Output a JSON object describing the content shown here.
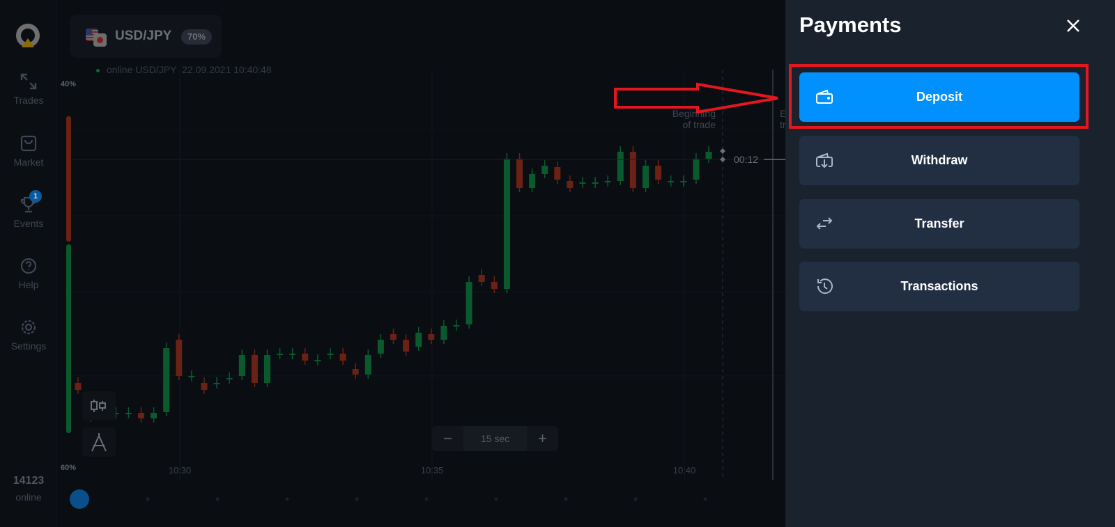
{
  "sidebar": {
    "items": [
      {
        "label": "Trades",
        "icon": "trades-arrows-icon"
      },
      {
        "label": "Market",
        "icon": "shopping-bag-icon"
      },
      {
        "label": "Events",
        "icon": "trophy-icon",
        "badge": "1"
      },
      {
        "label": "Help",
        "icon": "help-icon"
      },
      {
        "label": "Settings",
        "icon": "gear-icon"
      }
    ],
    "online_count": "14123",
    "online_label": "online"
  },
  "asset": {
    "name": "USD/JPY",
    "payout": "70%",
    "status": "online USD/JPY",
    "datetime": "22.09.2021 10:40:48"
  },
  "chart_data": {
    "type": "candlestick",
    "x_ticks": [
      "10:30",
      "10:35",
      "10:40"
    ],
    "candle_interval": "15 sec",
    "sentiment_top": "40%",
    "sentiment_bottom": "60%",
    "sentiment_sell_fraction": 0.4,
    "markers": {
      "beginning": "Beginning\nof trade",
      "expiration_partial": "E\ntr",
      "timer": "00:12"
    },
    "candles": [
      [
        150,
        140
      ],
      [
        120,
        100
      ],
      [
        107,
        107
      ],
      [
        107,
        107
      ],
      [
        107,
        107
      ],
      [
        107,
        99
      ],
      [
        99,
        107
      ],
      [
        108,
        200
      ],
      [
        212,
        160
      ],
      [
        160,
        160
      ],
      [
        150,
        140
      ],
      [
        150,
        150
      ],
      [
        157,
        157
      ],
      [
        160,
        190
      ],
      [
        190,
        150
      ],
      [
        150,
        190
      ],
      [
        192,
        192
      ],
      [
        192,
        192
      ],
      [
        192,
        182
      ],
      [
        183,
        183
      ],
      [
        192,
        192
      ],
      [
        192,
        182
      ],
      [
        170,
        162
      ],
      [
        162,
        190
      ],
      [
        192,
        212
      ],
      [
        220,
        212
      ],
      [
        212,
        195
      ],
      [
        202,
        222
      ],
      [
        220,
        212
      ],
      [
        212,
        232
      ],
      [
        233,
        233
      ],
      [
        234,
        295
      ],
      [
        305,
        295
      ],
      [
        295,
        285
      ],
      [
        285,
        472
      ],
      [
        472,
        430
      ],
      [
        430,
        450
      ],
      [
        450,
        462
      ],
      [
        460,
        442
      ],
      [
        440,
        430
      ],
      [
        438,
        438
      ],
      [
        438,
        438
      ],
      [
        440,
        440
      ],
      [
        440,
        482
      ],
      [
        482,
        430
      ],
      [
        430,
        462
      ],
      [
        462,
        442
      ],
      [
        440,
        440
      ],
      [
        440,
        440
      ],
      [
        442,
        472
      ],
      [
        472,
        482
      ]
    ],
    "colors": {
      "up": "#0b5a2e",
      "down": "#6b2214"
    }
  },
  "toolbar": {
    "zoom_out": "−",
    "zoom_value": "15 sec",
    "zoom_in": "+"
  },
  "payments": {
    "title": "Payments",
    "buttons": [
      {
        "label": "Deposit",
        "icon": "wallet-icon"
      },
      {
        "label": "Withdraw",
        "icon": "wallet-withdraw-icon"
      },
      {
        "label": "Transfer",
        "icon": "transfer-arrows-icon"
      },
      {
        "label": "Transactions",
        "icon": "history-icon"
      }
    ],
    "accent": "#0091ff",
    "highlight": "#e3171f"
  }
}
